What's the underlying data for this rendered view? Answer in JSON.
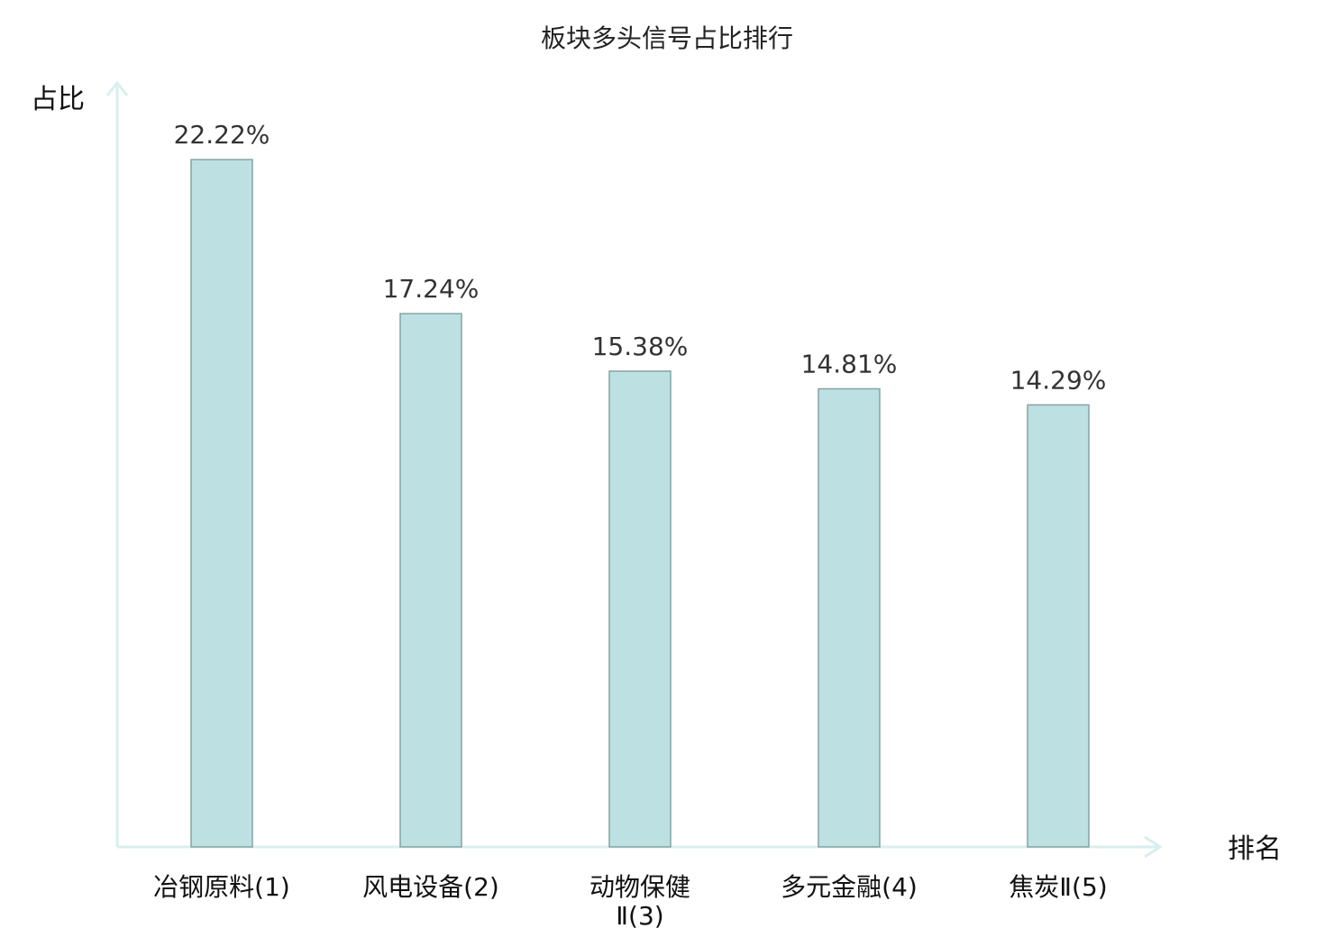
{
  "chart_data": {
    "type": "bar",
    "title": "板块多头信号占比排行",
    "ylabel": "占比",
    "xlabel": "排名",
    "ylim": [
      0,
      24.7
    ],
    "categories": [
      {
        "lines": [
          "冶钢原料(1)"
        ],
        "highlight": false
      },
      {
        "lines": [
          "风电设备(2)"
        ],
        "highlight": false
      },
      {
        "lines": [
          "动物保健",
          "Ⅱ(3)"
        ],
        "highlight": false
      },
      {
        "lines": [
          "多元金融(4)"
        ],
        "highlight": true
      },
      {
        "lines": [
          "焦炭Ⅱ(5)"
        ],
        "highlight": false
      }
    ],
    "values": [
      22.22,
      17.24,
      15.38,
      14.81,
      14.29
    ],
    "value_labels": [
      "22.22%",
      "17.24%",
      "15.38%",
      "14.81%",
      "14.29%"
    ],
    "grid": false,
    "legend": "none"
  },
  "colors": {
    "bar_fill": "#bde1e2",
    "bar_stroke": "#86a3a3",
    "axis": "#d8efee",
    "highlight_text": "#e0191c",
    "label_text": "#111111"
  }
}
